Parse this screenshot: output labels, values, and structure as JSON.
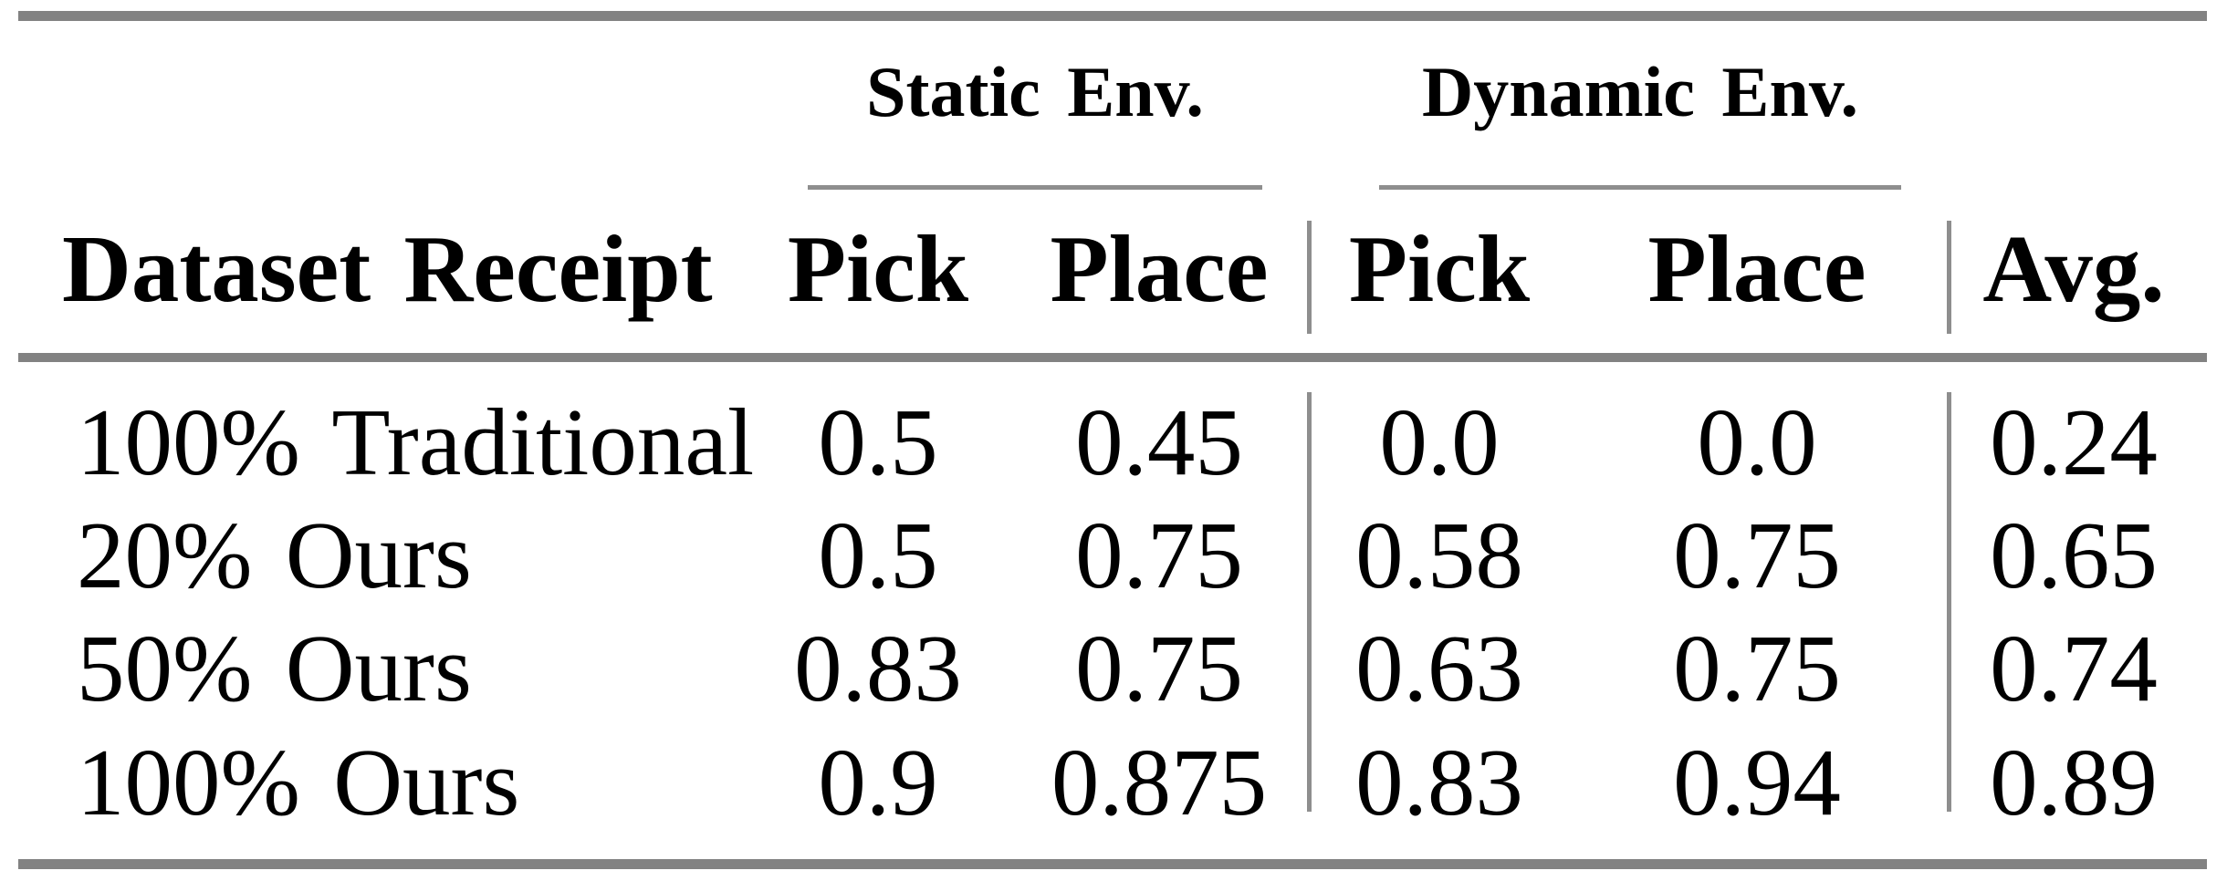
{
  "table": {
    "column_groups": {
      "static": "Static Env.",
      "dynamic": "Dynamic Env."
    },
    "headers": {
      "dataset": "Dataset Receipt",
      "static_pick": "Pick",
      "static_place": "Place",
      "dynamic_pick": "Pick",
      "dynamic_place": "Place",
      "avg": "Avg."
    },
    "rows": [
      {
        "label": "100% Traditional",
        "values": [
          "0.5",
          "0.45",
          "0.0",
          "0.0",
          "0.24"
        ]
      },
      {
        "label": "20% Ours",
        "values": [
          "0.5",
          "0.75",
          "0.58",
          "0.75",
          "0.65"
        ]
      },
      {
        "label": "50% Ours",
        "values": [
          "0.83",
          "0.75",
          "0.63",
          "0.75",
          "0.74"
        ]
      },
      {
        "label": "100% Ours",
        "values": [
          "0.9",
          "0.875",
          "0.83",
          "0.94",
          "0.89"
        ]
      }
    ]
  },
  "colors": {
    "thick_rule_gray": "#828282",
    "thin_rule_gray": "#8e8e8e",
    "text": "#000000",
    "background": "#ffffff"
  },
  "chart_data": {
    "type": "table",
    "title": "",
    "columns": [
      "Dataset Receipt",
      "Static Env. Pick",
      "Static Env. Place",
      "Dynamic Env. Pick",
      "Dynamic Env. Place",
      "Avg."
    ],
    "rows": [
      [
        "100% Traditional",
        0.5,
        0.45,
        0.0,
        0.0,
        0.24
      ],
      [
        "20% Ours",
        0.5,
        0.75,
        0.58,
        0.75,
        0.65
      ],
      [
        "50% Ours",
        0.83,
        0.75,
        0.63,
        0.75,
        0.74
      ],
      [
        "100% Ours",
        0.9,
        0.875,
        0.83,
        0.94,
        0.89
      ]
    ]
  }
}
